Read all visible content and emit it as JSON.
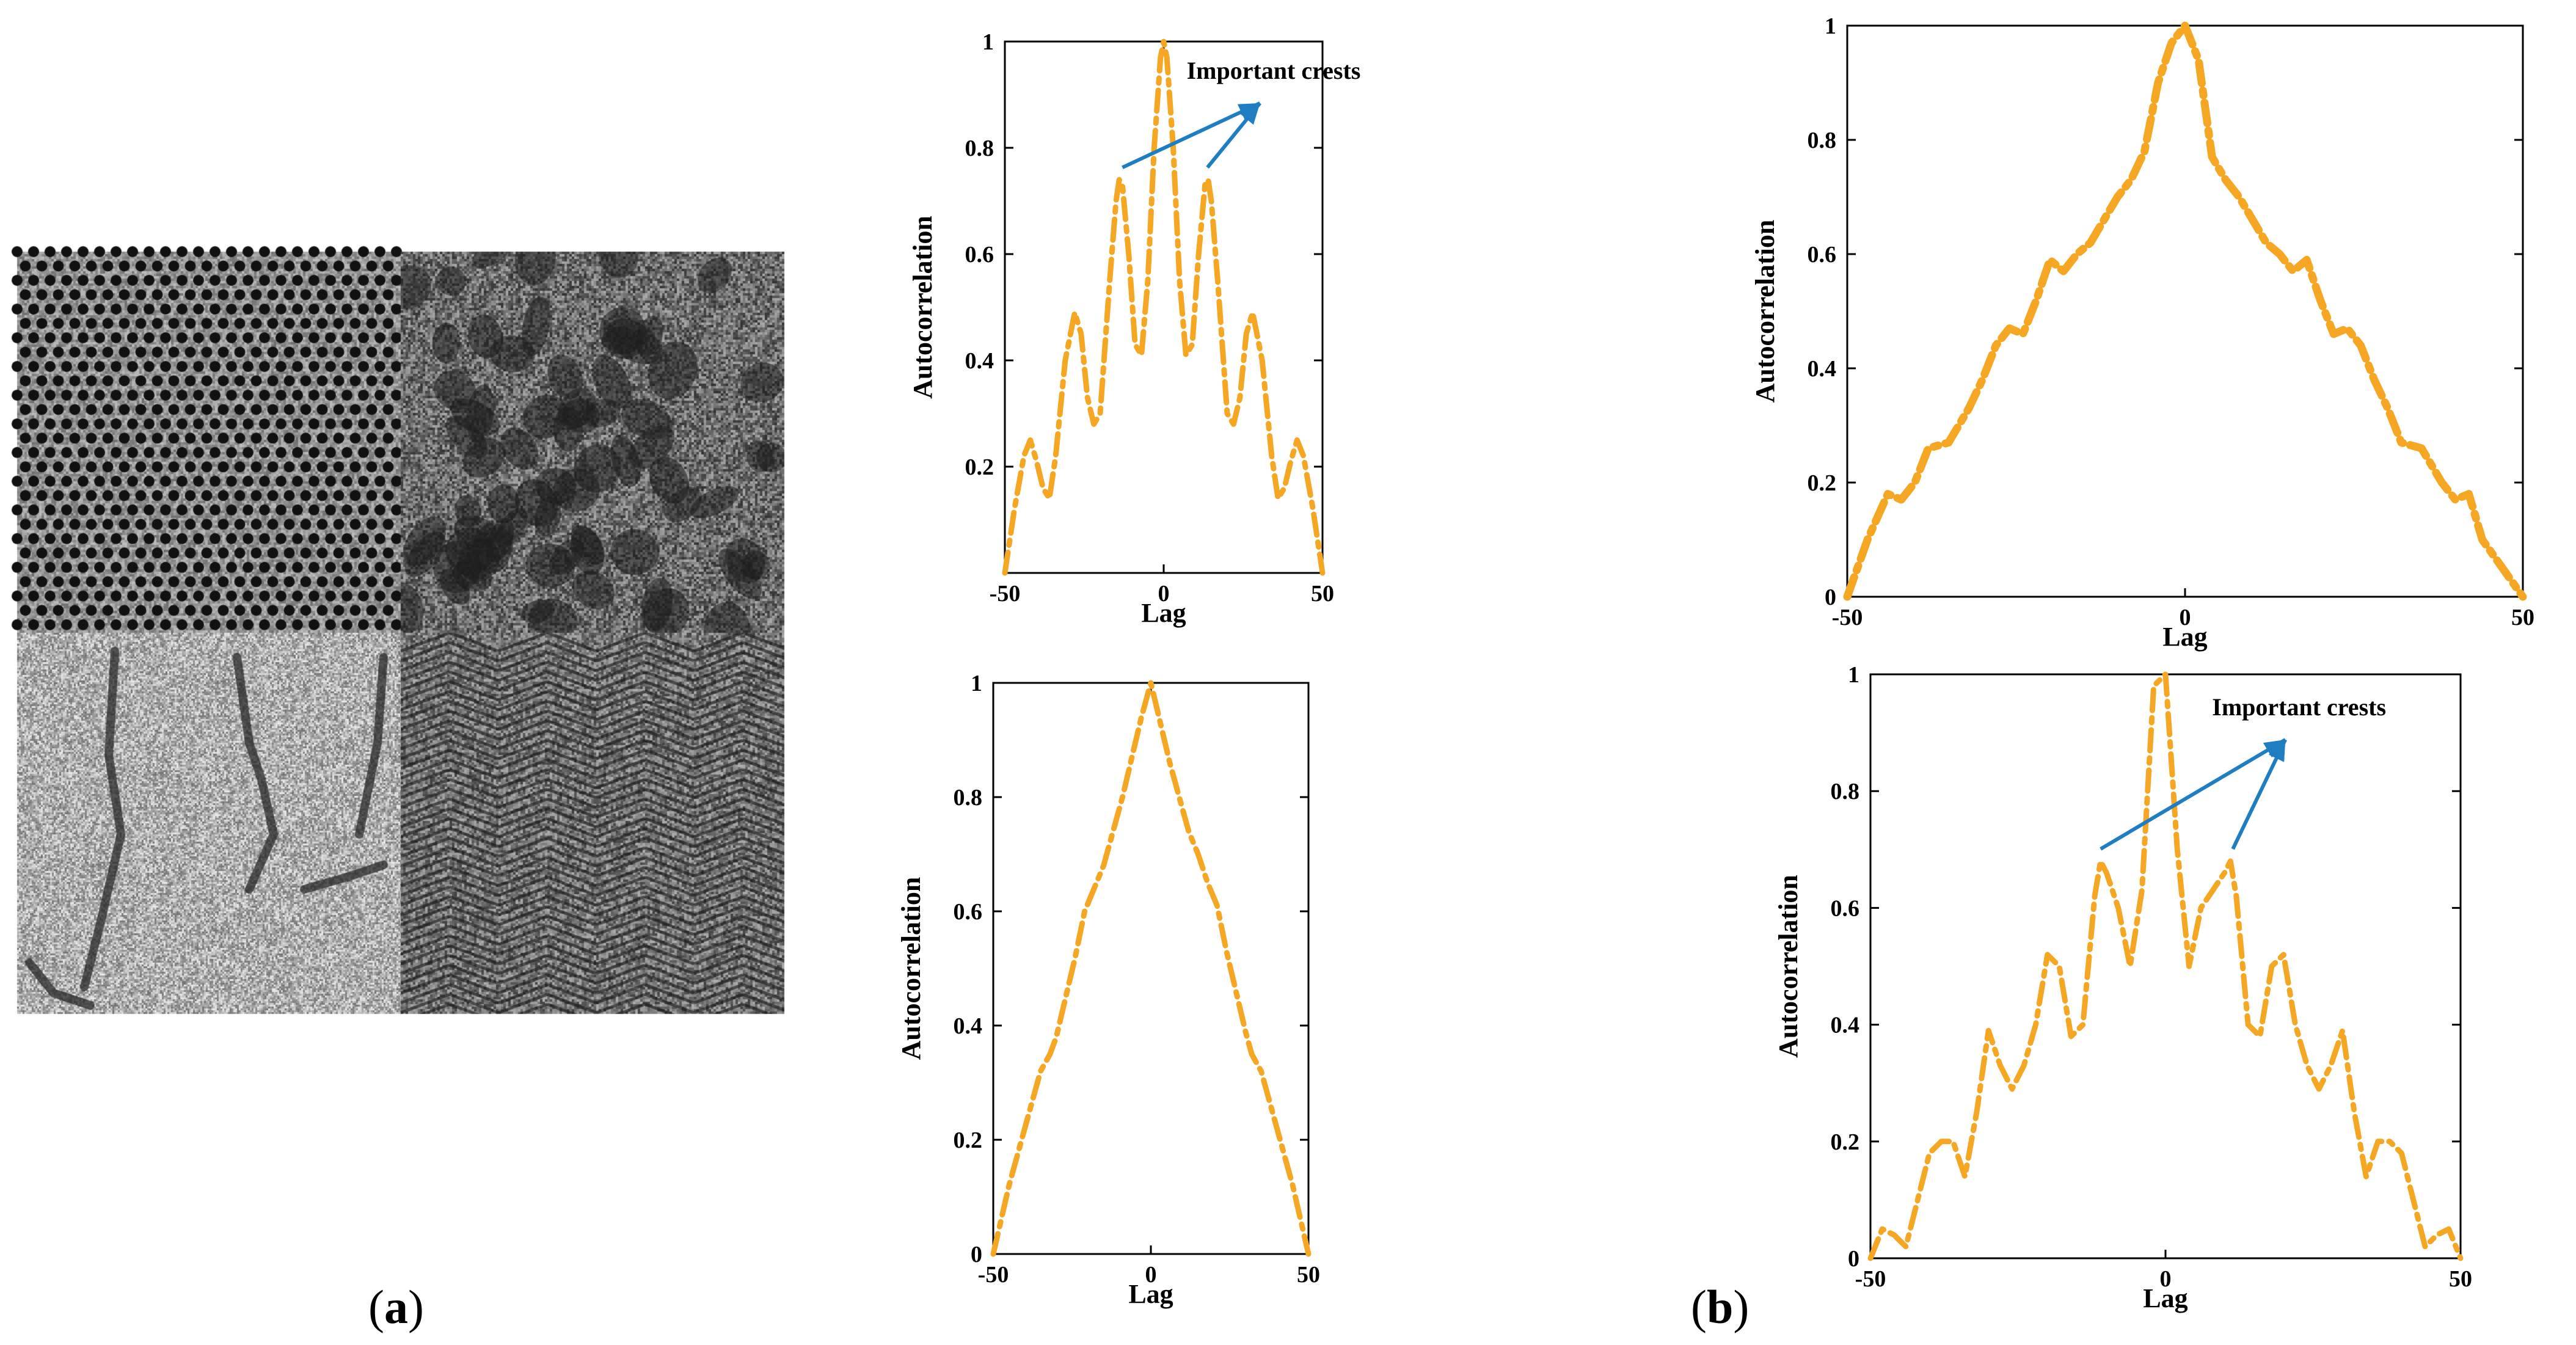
{
  "panel_a_label": "a",
  "panel_b_label": "b",
  "colors": {
    "series": "#F5A623",
    "annotation": "#1F7EC2",
    "frame": "#000000"
  },
  "chart_data": [
    {
      "type": "line",
      "position": "top-left",
      "xlabel": "Lag",
      "ylabel": "Autocorrelation",
      "xlim": [
        -50,
        50
      ],
      "ylim": [
        0,
        1
      ],
      "xticks": [
        "-50",
        "0",
        "50"
      ],
      "yticks": [
        "0.2",
        "0.4",
        "0.6",
        "0.8",
        "1"
      ],
      "annotation": {
        "text": "Important crests",
        "targets": [
          [
            -13,
            0.74
          ],
          [
            13,
            0.74
          ]
        ]
      },
      "series": [
        {
          "name": "autocorrelation",
          "x": [
            -50,
            -47,
            -44,
            -42,
            -40,
            -38,
            -36,
            -34,
            -31,
            -28,
            -26,
            -24,
            -22,
            -20,
            -17,
            -15,
            -14,
            -13,
            -11,
            -9,
            -7,
            -5,
            -3,
            -1,
            0,
            1,
            3,
            5,
            7,
            9,
            11,
            13,
            14,
            15,
            17,
            20,
            22,
            24,
            26,
            28,
            31,
            34,
            36,
            38,
            40,
            42,
            44,
            47,
            50
          ],
          "y": [
            0,
            0.12,
            0.22,
            0.25,
            0.21,
            0.16,
            0.14,
            0.22,
            0.4,
            0.49,
            0.45,
            0.33,
            0.28,
            0.3,
            0.55,
            0.7,
            0.74,
            0.73,
            0.6,
            0.43,
            0.41,
            0.55,
            0.8,
            0.97,
            1,
            0.97,
            0.8,
            0.55,
            0.41,
            0.43,
            0.6,
            0.73,
            0.74,
            0.7,
            0.55,
            0.3,
            0.28,
            0.33,
            0.45,
            0.49,
            0.4,
            0.22,
            0.14,
            0.16,
            0.21,
            0.25,
            0.22,
            0.12,
            0
          ]
        }
      ]
    },
    {
      "type": "line",
      "position": "top-right",
      "xlabel": "Lag",
      "ylabel": "Autocorrelation",
      "xlim": [
        -50,
        50
      ],
      "ylim": [
        0,
        1
      ],
      "xticks": [
        "-50",
        "0",
        "50"
      ],
      "yticks": [
        "0",
        "0.2",
        "0.4",
        "0.6",
        "0.8",
        "1"
      ],
      "series": [
        {
          "name": "autocorrelation",
          "x": [
            -50,
            -47,
            -44,
            -42,
            -40,
            -38,
            -35,
            -32,
            -30,
            -28,
            -26,
            -24,
            -22,
            -20,
            -18,
            -16,
            -14,
            -12,
            -10,
            -8,
            -6,
            -4,
            -2,
            0,
            2,
            4,
            6,
            8,
            10,
            12,
            14,
            16,
            18,
            20,
            22,
            24,
            26,
            28,
            30,
            32,
            35,
            38,
            40,
            42,
            44,
            47,
            50
          ],
          "y": [
            0,
            0.1,
            0.18,
            0.17,
            0.2,
            0.26,
            0.27,
            0.33,
            0.38,
            0.44,
            0.47,
            0.46,
            0.52,
            0.59,
            0.57,
            0.6,
            0.62,
            0.66,
            0.7,
            0.73,
            0.78,
            0.9,
            0.97,
            1,
            0.94,
            0.77,
            0.73,
            0.7,
            0.66,
            0.62,
            0.6,
            0.57,
            0.59,
            0.52,
            0.46,
            0.47,
            0.44,
            0.38,
            0.33,
            0.27,
            0.26,
            0.2,
            0.17,
            0.18,
            0.1,
            0.05,
            0
          ]
        }
      ]
    },
    {
      "type": "line",
      "position": "bottom-left",
      "xlabel": "Lag",
      "ylabel": "Autocorrelation",
      "xlim": [
        -50,
        50
      ],
      "ylim": [
        0,
        1
      ],
      "xticks": [
        "-50",
        "0",
        "50"
      ],
      "yticks": [
        "0",
        "0.2",
        "0.4",
        "0.6",
        "0.8",
        "1"
      ],
      "series": [
        {
          "name": "autocorrelation",
          "x": [
            -50,
            -45,
            -40,
            -35,
            -32,
            -30,
            -27,
            -24,
            -21,
            -18,
            -15,
            -12,
            -9,
            -6,
            -3,
            0,
            3,
            6,
            9,
            12,
            15,
            18,
            21,
            24,
            27,
            30,
            32,
            35,
            40,
            45,
            50
          ],
          "y": [
            0,
            0.12,
            0.22,
            0.32,
            0.35,
            0.38,
            0.45,
            0.52,
            0.6,
            0.64,
            0.68,
            0.74,
            0.8,
            0.87,
            0.94,
            1,
            0.93,
            0.86,
            0.8,
            0.74,
            0.7,
            0.65,
            0.61,
            0.53,
            0.46,
            0.39,
            0.35,
            0.32,
            0.22,
            0.12,
            0
          ]
        }
      ]
    },
    {
      "type": "line",
      "position": "bottom-right",
      "xlabel": "Lag",
      "ylabel": "Autocorrelation",
      "xlim": [
        -50,
        50
      ],
      "ylim": [
        0,
        1
      ],
      "xticks": [
        "-50",
        "0",
        "50"
      ],
      "yticks": [
        "0",
        "0.2",
        "0.4",
        "0.6",
        "0.8",
        "1"
      ],
      "annotation": {
        "text": "Important crests",
        "targets": [
          [
            -11,
            0.68
          ],
          [
            11,
            0.68
          ]
        ]
      },
      "series": [
        {
          "name": "autocorrelation",
          "x": [
            -50,
            -48,
            -46,
            -44,
            -42,
            -40,
            -38,
            -36,
            -34,
            -32,
            -30,
            -28,
            -26,
            -24,
            -22,
            -20,
            -18,
            -16,
            -14,
            -12,
            -11,
            -10,
            -8,
            -6,
            -4,
            -2,
            0,
            2,
            4,
            6,
            8,
            10,
            11,
            12,
            14,
            16,
            18,
            20,
            22,
            24,
            26,
            28,
            30,
            32,
            34,
            36,
            38,
            40,
            42,
            44,
            46,
            48,
            50
          ],
          "y": [
            0,
            0.05,
            0.04,
            0.02,
            0.1,
            0.18,
            0.2,
            0.2,
            0.14,
            0.25,
            0.39,
            0.33,
            0.29,
            0.33,
            0.4,
            0.52,
            0.5,
            0.38,
            0.4,
            0.62,
            0.68,
            0.66,
            0.6,
            0.5,
            0.63,
            0.98,
            1,
            0.7,
            0.5,
            0.6,
            0.63,
            0.66,
            0.68,
            0.62,
            0.4,
            0.38,
            0.5,
            0.52,
            0.4,
            0.33,
            0.29,
            0.33,
            0.39,
            0.25,
            0.14,
            0.2,
            0.2,
            0.18,
            0.1,
            0.02,
            0.04,
            0.05,
            0
          ]
        }
      ]
    }
  ]
}
